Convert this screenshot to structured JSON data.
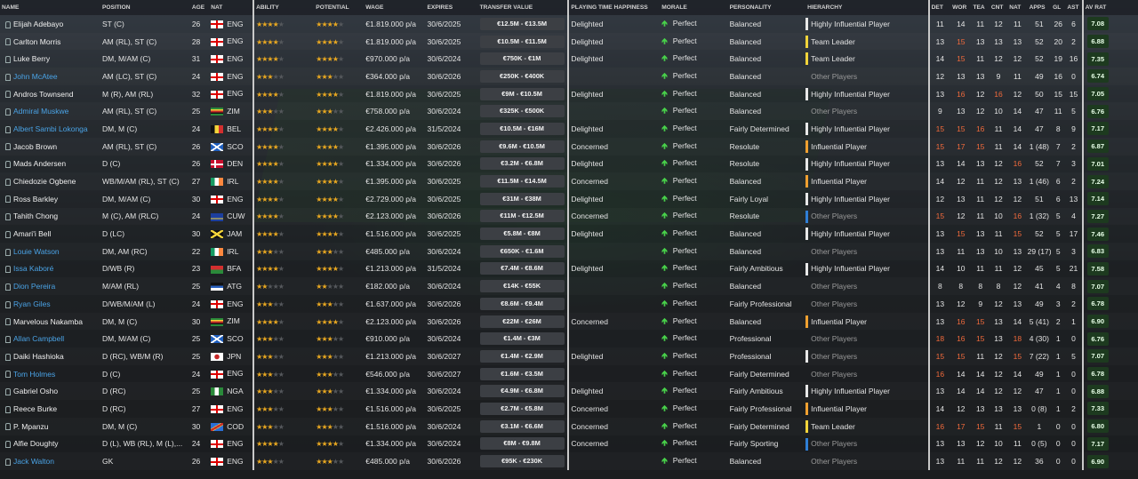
{
  "headers": {
    "name": "NAME",
    "position": "POSITION",
    "age": "AGE",
    "nat": "NAT",
    "ability": "ABILITY",
    "potential": "POTENTIAL",
    "wage": "WAGE",
    "expires": "EXPIRES",
    "transfer_value": "TRANSFER VALUE",
    "pt_happiness": "PLAYING TIME HAPPINESS",
    "morale": "MORALE",
    "personality": "PERSONALITY",
    "hierarchy": "HIERARCHY",
    "det": "DET",
    "wor": "WOR",
    "tea": "TEA",
    "cnt": "CNT",
    "nat2": "NAT",
    "apps": "APPS",
    "gl": "GL",
    "ast": "AST",
    "av_rat": "AV RAT"
  },
  "colors": {
    "star": "#e9a821",
    "link": "#4aa3e6",
    "orange_attr": "#f06a3c",
    "hier_white": "#e8e8e8",
    "hier_orange": "#f0a030",
    "hier_yellow": "#f2d43a",
    "hier_blue": "#2f7fd6"
  },
  "players": [
    {
      "name": "Elijah Adebayo",
      "link": false,
      "position": "ST (C)",
      "age": "26",
      "nat": "ENG",
      "ability": 3.5,
      "potential": 3.5,
      "wage": "€1.819.000 p/a",
      "expires": "30/6/2025",
      "tv": "€12.5M - €13.5M",
      "pth": "Delighted",
      "morale": "Perfect",
      "personality": "Balanced",
      "hierarchy": "Highly Influential Player",
      "hcolor": "#e8e8e8",
      "det": "11",
      "wor": "14",
      "tea": "11",
      "cnt": "12",
      "nat2": "11",
      "apps": "51",
      "gl": "26",
      "ast": "6",
      "rat": "7.08",
      "o": []
    },
    {
      "name": "Carlton Morris",
      "link": false,
      "position": "AM (RL), ST (C)",
      "age": "28",
      "nat": "ENG",
      "ability": 3.5,
      "potential": 3.5,
      "wage": "€1.819.000 p/a",
      "expires": "30/6/2025",
      "tv": "€10.5M - €11.5M",
      "pth": "Delighted",
      "morale": "Perfect",
      "personality": "Balanced",
      "hierarchy": "Team Leader",
      "hcolor": "#f2d43a",
      "det": "13",
      "wor": "15",
      "tea": "13",
      "cnt": "13",
      "nat2": "13",
      "apps": "52",
      "gl": "20",
      "ast": "2",
      "rat": "6.88",
      "o": [
        "wor"
      ]
    },
    {
      "name": "Luke Berry",
      "link": false,
      "position": "DM, M/AM (C)",
      "age": "31",
      "nat": "ENG",
      "ability": 3.5,
      "potential": 3.5,
      "wage": "€970.000 p/a",
      "expires": "30/6/2024",
      "tv": "€750K - €1M",
      "pth": "Delighted",
      "morale": "Perfect",
      "personality": "Balanced",
      "hierarchy": "Team Leader",
      "hcolor": "#f2d43a",
      "det": "14",
      "wor": "15",
      "tea": "11",
      "cnt": "12",
      "nat2": "12",
      "apps": "52",
      "gl": "19",
      "ast": "16",
      "rat": "7.35",
      "o": [
        "wor"
      ]
    },
    {
      "name": "John McAtee",
      "link": true,
      "position": "AM (LC), ST (C)",
      "age": "24",
      "nat": "ENG",
      "ability": 2.5,
      "potential": 3,
      "wage": "€364.000 p/a",
      "expires": "30/6/2026",
      "tv": "€250K - €400K",
      "pth": "",
      "morale": "Perfect",
      "personality": "Balanced",
      "hierarchy": "Other Players",
      "hcolor": "",
      "det": "12",
      "wor": "13",
      "tea": "13",
      "cnt": "9",
      "nat2": "11",
      "apps": "49",
      "gl": "16",
      "ast": "0",
      "rat": "6.74",
      "o": []
    },
    {
      "name": "Andros Townsend",
      "link": false,
      "position": "M (R), AM (RL)",
      "age": "32",
      "nat": "ENG",
      "ability": 3.5,
      "potential": 3.5,
      "wage": "€1.819.000 p/a",
      "expires": "30/6/2025",
      "tv": "€9M - €10.5M",
      "pth": "Delighted",
      "morale": "Perfect",
      "personality": "Balanced",
      "hierarchy": "Highly Influential Player",
      "hcolor": "#e8e8e8",
      "det": "13",
      "wor": "16",
      "tea": "12",
      "cnt": "16",
      "nat2": "12",
      "apps": "50",
      "gl": "15",
      "ast": "15",
      "rat": "7.05",
      "o": [
        "wor",
        "cnt"
      ]
    },
    {
      "name": "Admiral Muskwe",
      "link": true,
      "position": "AM (RL), ST (C)",
      "age": "25",
      "nat": "ZIM",
      "ability": 2.5,
      "potential": 3,
      "wage": "€758.000 p/a",
      "expires": "30/6/2024",
      "tv": "€325K - €500K",
      "pth": "",
      "morale": "Perfect",
      "personality": "Balanced",
      "hierarchy": "Other Players",
      "hcolor": "",
      "det": "9",
      "wor": "13",
      "tea": "12",
      "cnt": "10",
      "nat2": "14",
      "apps": "47",
      "gl": "11",
      "ast": "5",
      "rat": "6.76",
      "o": []
    },
    {
      "name": "Albert Sambi Lokonga",
      "link": true,
      "position": "DM, M (C)",
      "age": "24",
      "nat": "BEL",
      "ability": 4,
      "potential": 4,
      "wage": "€2.426.000 p/a",
      "expires": "31/5/2024",
      "tv": "€10.5M - €16M",
      "pth": "Delighted",
      "morale": "Perfect",
      "personality": "Fairly Determined",
      "hierarchy": "Highly Influential Player",
      "hcolor": "#e8e8e8",
      "det": "15",
      "wor": "15",
      "tea": "16",
      "cnt": "11",
      "nat2": "14",
      "apps": "47",
      "gl": "8",
      "ast": "9",
      "rat": "7.17",
      "o": [
        "det",
        "wor",
        "tea"
      ]
    },
    {
      "name": "Jacob Brown",
      "link": false,
      "position": "AM (RL), ST (C)",
      "age": "26",
      "nat": "SCO",
      "ability": 3.5,
      "potential": 3.5,
      "wage": "€1.395.000 p/a",
      "expires": "30/6/2026",
      "tv": "€9.6M - €10.5M",
      "pth": "Concerned",
      "morale": "Perfect",
      "personality": "Resolute",
      "hierarchy": "Influential Player",
      "hcolor": "#f0a030",
      "det": "15",
      "wor": "17",
      "tea": "15",
      "cnt": "11",
      "nat2": "14",
      "apps": "1 (48)",
      "gl": "7",
      "ast": "2",
      "rat": "6.87",
      "o": [
        "det",
        "wor",
        "tea"
      ]
    },
    {
      "name": "Mads Andersen",
      "link": false,
      "position": "D (C)",
      "age": "26",
      "nat": "DEN",
      "ability": 3.5,
      "potential": 3.5,
      "wage": "€1.334.000 p/a",
      "expires": "30/6/2026",
      "tv": "€3.2M - €6.8M",
      "pth": "Delighted",
      "morale": "Perfect",
      "personality": "Resolute",
      "hierarchy": "Highly Influential Player",
      "hcolor": "#e8e8e8",
      "det": "13",
      "wor": "14",
      "tea": "13",
      "cnt": "12",
      "nat2": "16",
      "apps": "52",
      "gl": "7",
      "ast": "3",
      "rat": "7.01",
      "o": [
        "nat2"
      ]
    },
    {
      "name": "Chiedozie Ogbene",
      "link": false,
      "position": "WB/M/AM (RL), ST (C)",
      "age": "27",
      "nat": "IRL",
      "ability": 3.5,
      "potential": 3.5,
      "wage": "€1.395.000 p/a",
      "expires": "30/6/2025",
      "tv": "€11.5M - €14.5M",
      "pth": "Concerned",
      "morale": "Perfect",
      "personality": "Balanced",
      "hierarchy": "Influential Player",
      "hcolor": "#f0a030",
      "det": "14",
      "wor": "12",
      "tea": "11",
      "cnt": "12",
      "nat2": "13",
      "apps": "1 (46)",
      "gl": "6",
      "ast": "2",
      "rat": "7.24",
      "o": []
    },
    {
      "name": "Ross Barkley",
      "link": false,
      "position": "DM, M/AM (C)",
      "age": "30",
      "nat": "ENG",
      "ability": 4,
      "potential": 4,
      "wage": "€2.729.000 p/a",
      "expires": "30/6/2025",
      "tv": "€31M - €38M",
      "pth": "Delighted",
      "morale": "Perfect",
      "personality": "Fairly Loyal",
      "hierarchy": "Highly Influential Player",
      "hcolor": "#e8e8e8",
      "det": "12",
      "wor": "13",
      "tea": "11",
      "cnt": "12",
      "nat2": "12",
      "apps": "51",
      "gl": "6",
      "ast": "13",
      "rat": "7.14",
      "o": []
    },
    {
      "name": "Tahith Chong",
      "link": false,
      "position": "M (C), AM (RLC)",
      "age": "24",
      "nat": "CUW",
      "ability": 3.5,
      "potential": 3.5,
      "wage": "€2.123.000 p/a",
      "expires": "30/6/2026",
      "tv": "€11M - €12.5M",
      "pth": "Concerned",
      "morale": "Perfect",
      "personality": "Resolute",
      "hierarchy": "Other Players",
      "hcolor": "#2f7fd6",
      "det": "15",
      "wor": "12",
      "tea": "11",
      "cnt": "10",
      "nat2": "16",
      "apps": "1 (32)",
      "gl": "5",
      "ast": "4",
      "rat": "7.27",
      "o": [
        "det",
        "nat2"
      ]
    },
    {
      "name": "Amari'i Bell",
      "link": false,
      "position": "D (LC)",
      "age": "30",
      "nat": "JAM",
      "ability": 3.5,
      "potential": 3.5,
      "wage": "€1.516.000 p/a",
      "expires": "30/6/2025",
      "tv": "€5.8M - €8M",
      "pth": "Delighted",
      "morale": "Perfect",
      "personality": "Balanced",
      "hierarchy": "Highly Influential Player",
      "hcolor": "#e8e8e8",
      "det": "13",
      "wor": "15",
      "tea": "13",
      "cnt": "11",
      "nat2": "15",
      "apps": "52",
      "gl": "5",
      "ast": "17",
      "rat": "7.46",
      "o": [
        "wor",
        "nat2"
      ]
    },
    {
      "name": "Louie Watson",
      "link": true,
      "position": "DM, AM (RC)",
      "age": "22",
      "nat": "IRL",
      "ability": 3,
      "potential": 3,
      "wage": "€485.000 p/a",
      "expires": "30/6/2024",
      "tv": "€650K - €1.6M",
      "pth": "",
      "morale": "Perfect",
      "personality": "Balanced",
      "hierarchy": "Other Players",
      "hcolor": "",
      "det": "13",
      "wor": "11",
      "tea": "13",
      "cnt": "10",
      "nat2": "13",
      "apps": "29 (17)",
      "gl": "5",
      "ast": "3",
      "rat": "6.83",
      "o": []
    },
    {
      "name": "Issa Kaboré",
      "link": true,
      "position": "D/WB (R)",
      "age": "23",
      "nat": "BFA",
      "ability": 3.5,
      "potential": 3.5,
      "wage": "€1.213.000 p/a",
      "expires": "31/5/2024",
      "tv": "€7.4M - €8.6M",
      "pth": "Delighted",
      "morale": "Perfect",
      "personality": "Fairly Ambitious",
      "hierarchy": "Highly Influential Player",
      "hcolor": "#e8e8e8",
      "det": "14",
      "wor": "10",
      "tea": "11",
      "cnt": "11",
      "nat2": "12",
      "apps": "45",
      "gl": "5",
      "ast": "21",
      "rat": "7.58",
      "o": []
    },
    {
      "name": "Dion Pereira",
      "link": true,
      "position": "M/AM (RL)",
      "age": "25",
      "nat": "ATG",
      "ability": 1.5,
      "potential": 2,
      "wage": "€182.000 p/a",
      "expires": "30/6/2024",
      "tv": "€14K - €55K",
      "pth": "",
      "morale": "Perfect",
      "personality": "Balanced",
      "hierarchy": "Other Players",
      "hcolor": "",
      "det": "8",
      "wor": "8",
      "tea": "8",
      "cnt": "8",
      "nat2": "12",
      "apps": "41",
      "gl": "4",
      "ast": "8",
      "rat": "7.07",
      "o": []
    },
    {
      "name": "Ryan Giles",
      "link": true,
      "position": "D/WB/M/AM (L)",
      "age": "24",
      "nat": "ENG",
      "ability": 3,
      "potential": 3,
      "wage": "€1.637.000 p/a",
      "expires": "30/6/2026",
      "tv": "€8.6M - €9.4M",
      "pth": "",
      "morale": "Perfect",
      "personality": "Fairly Professional",
      "hierarchy": "Other Players",
      "hcolor": "",
      "det": "13",
      "wor": "12",
      "tea": "9",
      "cnt": "12",
      "nat2": "13",
      "apps": "49",
      "gl": "3",
      "ast": "2",
      "rat": "6.78",
      "o": []
    },
    {
      "name": "Marvelous Nakamba",
      "link": false,
      "position": "DM, M (C)",
      "age": "30",
      "nat": "ZIM",
      "ability": 3.5,
      "potential": 3.5,
      "wage": "€2.123.000 p/a",
      "expires": "30/6/2026",
      "tv": "€22M - €26M",
      "pth": "Concerned",
      "morale": "Perfect",
      "personality": "Balanced",
      "hierarchy": "Influential Player",
      "hcolor": "#f0a030",
      "det": "13",
      "wor": "16",
      "tea": "15",
      "cnt": "13",
      "nat2": "14",
      "apps": "5 (41)",
      "gl": "2",
      "ast": "1",
      "rat": "6.90",
      "o": [
        "wor",
        "tea"
      ]
    },
    {
      "name": "Allan Campbell",
      "link": true,
      "position": "DM, M/AM (C)",
      "age": "25",
      "nat": "SCO",
      "ability": 3,
      "potential": 3,
      "wage": "€910.000 p/a",
      "expires": "30/6/2024",
      "tv": "€1.4M - €3M",
      "pth": "",
      "morale": "Perfect",
      "personality": "Professional",
      "hierarchy": "Other Players",
      "hcolor": "",
      "det": "18",
      "wor": "16",
      "tea": "15",
      "cnt": "13",
      "nat2": "18",
      "apps": "4 (30)",
      "gl": "1",
      "ast": "0",
      "rat": "6.76",
      "o": [
        "det",
        "wor",
        "tea",
        "nat2"
      ]
    },
    {
      "name": "Daiki Hashioka",
      "link": false,
      "position": "D (RC), WB/M (R)",
      "age": "25",
      "nat": "JPN",
      "ability": 3,
      "potential": 3,
      "wage": "€1.213.000 p/a",
      "expires": "30/6/2027",
      "tv": "€1.4M - €2.9M",
      "pth": "Delighted",
      "morale": "Perfect",
      "personality": "Professional",
      "hierarchy": "Other Players",
      "hcolor": "#e8e8e8",
      "det": "15",
      "wor": "15",
      "tea": "11",
      "cnt": "12",
      "nat2": "15",
      "apps": "7 (22)",
      "gl": "1",
      "ast": "5",
      "rat": "7.07",
      "o": [
        "det",
        "wor",
        "nat2"
      ]
    },
    {
      "name": "Tom Holmes",
      "link": true,
      "position": "D (C)",
      "age": "24",
      "nat": "ENG",
      "ability": 3,
      "potential": 3,
      "wage": "€546.000 p/a",
      "expires": "30/6/2027",
      "tv": "€1.6M - €3.5M",
      "pth": "",
      "morale": "Perfect",
      "personality": "Fairly Determined",
      "hierarchy": "Other Players",
      "hcolor": "",
      "det": "16",
      "wor": "14",
      "tea": "14",
      "cnt": "12",
      "nat2": "14",
      "apps": "49",
      "gl": "1",
      "ast": "0",
      "rat": "6.78",
      "o": [
        "det"
      ]
    },
    {
      "name": "Gabriel Osho",
      "link": false,
      "position": "D (RC)",
      "age": "25",
      "nat": "NGA",
      "ability": 3,
      "potential": 3,
      "wage": "€1.334.000 p/a",
      "expires": "30/6/2024",
      "tv": "€4.9M - €6.8M",
      "pth": "Delighted",
      "morale": "Perfect",
      "personality": "Fairly Ambitious",
      "hierarchy": "Highly Influential Player",
      "hcolor": "#e8e8e8",
      "det": "13",
      "wor": "14",
      "tea": "14",
      "cnt": "12",
      "nat2": "12",
      "apps": "47",
      "gl": "1",
      "ast": "0",
      "rat": "6.88",
      "o": []
    },
    {
      "name": "Reece Burke",
      "link": false,
      "position": "D (RC)",
      "age": "27",
      "nat": "ENG",
      "ability": 3,
      "potential": 3,
      "wage": "€1.516.000 p/a",
      "expires": "30/6/2025",
      "tv": "€2.7M - €5.8M",
      "pth": "Concerned",
      "morale": "Perfect",
      "personality": "Fairly Professional",
      "hierarchy": "Influential Player",
      "hcolor": "#f0a030",
      "det": "14",
      "wor": "12",
      "tea": "13",
      "cnt": "13",
      "nat2": "13",
      "apps": "0 (8)",
      "gl": "1",
      "ast": "2",
      "rat": "7.33",
      "o": []
    },
    {
      "name": "P. Mpanzu",
      "link": false,
      "position": "DM, M (C)",
      "age": "30",
      "nat": "COD",
      "ability": 3,
      "potential": 3,
      "wage": "€1.516.000 p/a",
      "expires": "30/6/2024",
      "tv": "€3.1M - €6.6M",
      "pth": "Concerned",
      "morale": "Perfect",
      "personality": "Fairly Determined",
      "hierarchy": "Team Leader",
      "hcolor": "#f2d43a",
      "det": "16",
      "wor": "17",
      "tea": "15",
      "cnt": "11",
      "nat2": "15",
      "apps": "1",
      "gl": "0",
      "ast": "0",
      "rat": "6.80",
      "o": [
        "det",
        "wor",
        "tea",
        "nat2"
      ]
    },
    {
      "name": "Alfie Doughty",
      "link": false,
      "position": "D (L), WB (RL), M (L),...",
      "age": "24",
      "nat": "ENG",
      "ability": 3.5,
      "potential": 3.5,
      "wage": "€1.334.000 p/a",
      "expires": "30/6/2024",
      "tv": "€8M - €9.8M",
      "pth": "Concerned",
      "morale": "Perfect",
      "personality": "Fairly Sporting",
      "hierarchy": "Other Players",
      "hcolor": "#2f7fd6",
      "det": "13",
      "wor": "13",
      "tea": "12",
      "cnt": "10",
      "nat2": "11",
      "apps": "0 (5)",
      "gl": "0",
      "ast": "0",
      "rat": "7.17",
      "o": []
    },
    {
      "name": "Jack Walton",
      "link": true,
      "position": "GK",
      "age": "26",
      "nat": "ENG",
      "ability": 2.5,
      "potential": 3,
      "wage": "€485.000 p/a",
      "expires": "30/6/2026",
      "tv": "€95K - €230K",
      "pth": "",
      "morale": "Perfect",
      "personality": "Balanced",
      "hierarchy": "Other Players",
      "hcolor": "",
      "det": "13",
      "wor": "11",
      "tea": "11",
      "cnt": "12",
      "nat2": "12",
      "apps": "36",
      "gl": "0",
      "ast": "0",
      "rat": "6.90",
      "o": []
    }
  ]
}
